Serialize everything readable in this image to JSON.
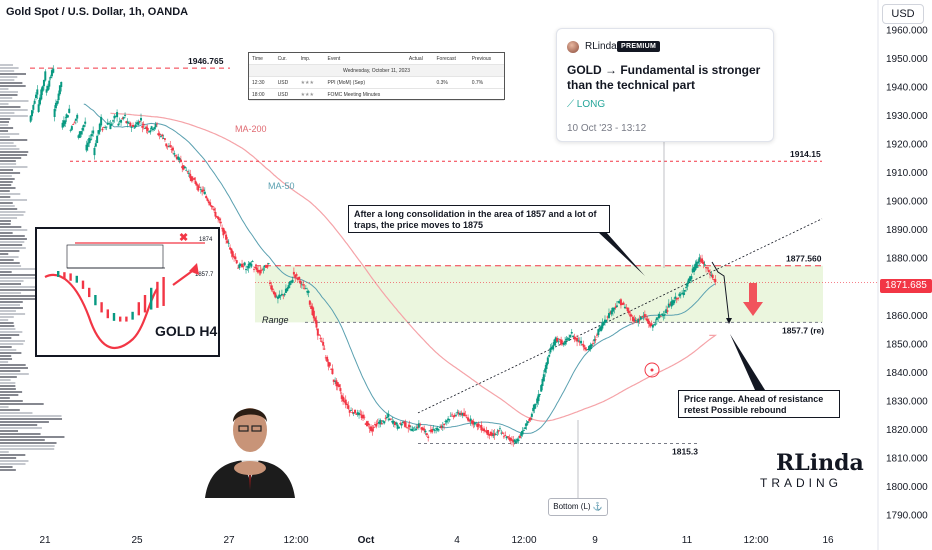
{
  "header": {
    "symbol_title": "Gold Spot / U.S. Dollar, 1h, OANDA",
    "currency_button": "USD"
  },
  "current_price_label": "1871.685",
  "chart_data": {
    "type": "candlestick",
    "title": "Gold Spot / U.S. Dollar, 1h, OANDA",
    "ylim": [
      1785,
      1965
    ],
    "y_ticks": [
      "1960.000",
      "1950.000",
      "1940.000",
      "1930.000",
      "1920.000",
      "1910.000",
      "1900.000",
      "1890.000",
      "1880.000",
      "1870.000",
      "1860.000",
      "1850.000",
      "1840.000",
      "1830.000",
      "1820.000",
      "1810.000",
      "1800.000",
      "1790.000"
    ],
    "x_ticks": [
      "21",
      "25",
      "27",
      "12:00",
      "Oct",
      "4",
      "12:00",
      "9",
      "11",
      "12:00",
      "16"
    ],
    "price_path": [
      [
        1928,
        1940
      ],
      [
        1932,
        1945
      ],
      [
        1938,
        1947
      ],
      [
        1930,
        1942
      ],
      [
        1926,
        1932
      ],
      [
        1925,
        1930
      ],
      [
        1922,
        1928
      ],
      [
        1918,
        1925
      ],
      [
        1917,
        1929
      ],
      [
        1925,
        1928
      ],
      [
        1926,
        1931
      ],
      [
        1927,
        1930
      ],
      [
        1928,
        1926
      ],
      [
        1926,
        1929
      ],
      [
        1927,
        1925
      ],
      [
        1925,
        1927
      ],
      [
        1924,
        1922
      ],
      [
        1920,
        1918
      ],
      [
        1917,
        1914
      ],
      [
        1913,
        1910
      ],
      [
        1909,
        1906
      ],
      [
        1905,
        1903
      ],
      [
        1902,
        1898
      ],
      [
        1897,
        1892
      ],
      [
        1891,
        1885
      ],
      [
        1884,
        1879
      ],
      [
        1877,
        1878
      ],
      [
        1876,
        1879
      ],
      [
        1877,
        1875
      ],
      [
        1876,
        1878
      ],
      [
        1872,
        1866
      ],
      [
        1866,
        1868
      ],
      [
        1868,
        1873
      ],
      [
        1875,
        1872
      ],
      [
        1871,
        1868
      ],
      [
        1866,
        1856
      ],
      [
        1855,
        1848
      ],
      [
        1846,
        1840
      ],
      [
        1838,
        1834
      ],
      [
        1832,
        1828
      ],
      [
        1827,
        1826
      ],
      [
        1826,
        1824
      ],
      [
        1823,
        1820
      ],
      [
        1821,
        1823
      ],
      [
        1822,
        1825
      ],
      [
        1824,
        1822
      ],
      [
        1821,
        1823
      ],
      [
        1822,
        1820
      ],
      [
        1820,
        1822
      ],
      [
        1821,
        1818
      ],
      [
        1819,
        1821
      ],
      [
        1820,
        1822
      ],
      [
        1823,
        1825
      ],
      [
        1825,
        1826
      ],
      [
        1826,
        1824
      ],
      [
        1824,
        1822
      ],
      [
        1822,
        1820
      ],
      [
        1820,
        1818
      ],
      [
        1818,
        1820
      ],
      [
        1819,
        1817
      ],
      [
        1817,
        1816
      ],
      [
        1816,
        1820
      ],
      [
        1821,
        1825
      ],
      [
        1826,
        1833
      ],
      [
        1834,
        1845
      ],
      [
        1846,
        1852
      ],
      [
        1852,
        1850
      ],
      [
        1850,
        1854
      ],
      [
        1853,
        1851
      ],
      [
        1851,
        1848
      ],
      [
        1848,
        1852
      ],
      [
        1853,
        1858
      ],
      [
        1858,
        1862
      ],
      [
        1862,
        1865
      ],
      [
        1865,
        1862
      ],
      [
        1861,
        1858
      ],
      [
        1858,
        1860
      ],
      [
        1860,
        1856
      ],
      [
        1856,
        1860
      ],
      [
        1860,
        1862
      ],
      [
        1863,
        1866
      ],
      [
        1866,
        1868
      ],
      [
        1869,
        1874
      ],
      [
        1875,
        1880
      ],
      [
        1880,
        1876
      ],
      [
        1876,
        1872
      ]
    ],
    "levels": [
      {
        "name": "resistance-top",
        "value": 1946.765,
        "label": "1946.765"
      },
      {
        "name": "resistance-mid",
        "value": 1914.15,
        "label": "1914.15"
      },
      {
        "name": "resistance-range",
        "value": 1877.56,
        "label": "1877.560"
      },
      {
        "name": "range-bottom",
        "value": 1857.7,
        "label": "1857.7 (re)"
      },
      {
        "name": "bottom",
        "value": 1815.3,
        "label": "1815.3"
      }
    ],
    "ma_labels": {
      "ma200": "MA-200",
      "ma50": "MA-50"
    },
    "range_label": "Range",
    "bottom_label": "Bottom (L) ⚓"
  },
  "idea_card": {
    "author": "RLinda",
    "badge": "PREMIUM",
    "title": "GOLD → Fundamental is stronger than the technical part",
    "direction": "⟋ LONG",
    "date": "10 Oct '23 - 13:12"
  },
  "calendar": {
    "headers": [
      "Time",
      "Cur.",
      "Imp.",
      "Event",
      "Actual",
      "Forecast",
      "Previous"
    ],
    "day": "Wednesday, October 11, 2023",
    "rows": [
      {
        "time": "12:30",
        "cur": "USD",
        "imp": "★★★",
        "event": "PPI (MoM) (Sep)",
        "actual": "",
        "forecast": "0.3%",
        "previous": "0.7%"
      },
      {
        "time": "18:00",
        "cur": "USD",
        "imp": "★★★",
        "event": "FOMC Meeting Minutes",
        "actual": "",
        "forecast": "",
        "previous": ""
      }
    ]
  },
  "annotations": {
    "consolidation": "After a long consolidation in the area of 1857 and a lot of traps, the price moves to 1875",
    "rebound": "Price range. Ahead of resistance retest Possible rebound"
  },
  "inset": {
    "title": "GOLD H4",
    "level_high": "1874",
    "level_low": "1857.7"
  },
  "logo": {
    "line1": "RLinda",
    "line2": "TRADING"
  },
  "colors": {
    "up": "#089981",
    "down": "#f23645",
    "ma200": "#f5a3a8",
    "ma50": "#5aa0b0",
    "range_fill": "#e8f5d8"
  }
}
